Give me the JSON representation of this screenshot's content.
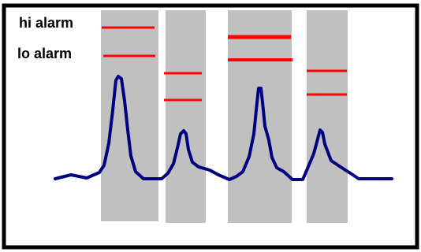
{
  "labels": {
    "hi_alarm": "hi alarm",
    "lo_alarm": "lo alarm"
  },
  "colors": {
    "border": "#000000",
    "background": "#ffffff",
    "band": "#c0c0c0",
    "alarm_line": "#ff0000",
    "waveform": "#000080"
  }
}
